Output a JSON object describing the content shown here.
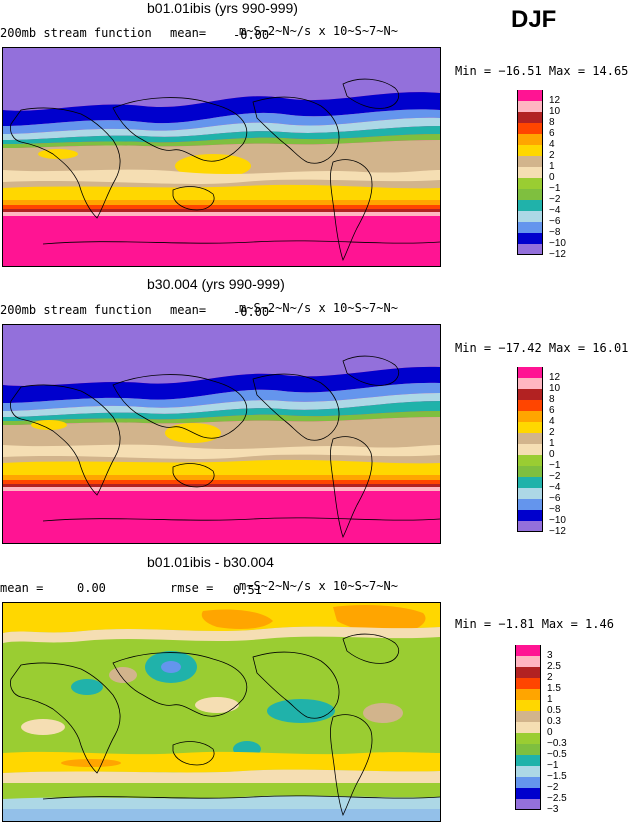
{
  "season": "DJF",
  "panels": [
    {
      "title": "b01.01ibis (yrs 990-999)",
      "left_label": "200mb stream function",
      "mean_label": "mean=",
      "mean_value": "-0.00",
      "units": "m~S~2~N~/s x 10~S~7~N~",
      "min_max": "Min = −16.51 Max =  14.65",
      "levels": [
        "12",
        "10",
        "8",
        "6",
        "4",
        "2",
        "1",
        "0",
        "−1",
        "−2",
        "−4",
        "−6",
        "−8",
        "−10",
        "−12"
      ],
      "colors": [
        "#ff1493",
        "#ffb6c1",
        "#b22222",
        "#ff4500",
        "#ffa500",
        "#ffd700",
        "#d2b48c",
        "#f5deb3",
        "#9acd32",
        "#7fbf3f",
        "#20b2aa",
        "#add8e6",
        "#6495ed",
        "#0000cd",
        "#9370db"
      ]
    },
    {
      "title": "b30.004 (yrs 990-999)",
      "left_label": "200mb stream function",
      "mean_label": "mean=",
      "mean_value": "-0.00",
      "units": "m~S~2~N~/s x 10~S~7~N~",
      "min_max": "Min = −17.42 Max =  16.01",
      "levels": [
        "12",
        "10",
        "8",
        "6",
        "4",
        "2",
        "1",
        "0",
        "−1",
        "−2",
        "−4",
        "−6",
        "−8",
        "−10",
        "−12"
      ],
      "colors": [
        "#ff1493",
        "#ffb6c1",
        "#b22222",
        "#ff4500",
        "#ffa500",
        "#ffd700",
        "#d2b48c",
        "#f5deb3",
        "#9acd32",
        "#7fbf3f",
        "#20b2aa",
        "#add8e6",
        "#6495ed",
        "#0000cd",
        "#9370db"
      ]
    },
    {
      "title": "b01.01ibis - b30.004",
      "left_label": "mean =",
      "mean_value": "0.00",
      "rmse_label": "rmse =",
      "rmse_value": "0.51",
      "units": "m~S~2~N~/s x 10~S~7~N~",
      "min_max": "Min =  −1.81 Max =   1.46",
      "levels": [
        "3",
        "2.5",
        "2",
        "1.5",
        "1",
        "0.5",
        "0.3",
        "0",
        "−0.3",
        "−0.5",
        "−1",
        "−1.5",
        "−2",
        "−2.5",
        "−3"
      ],
      "colors": [
        "#ff1493",
        "#ffb6c1",
        "#b22222",
        "#ff4500",
        "#ffa500",
        "#ffd700",
        "#d2b48c",
        "#f5deb3",
        "#9acd32",
        "#7fbf3f",
        "#20b2aa",
        "#add8e6",
        "#6495ed",
        "#0000cd",
        "#9370db"
      ]
    }
  ]
}
